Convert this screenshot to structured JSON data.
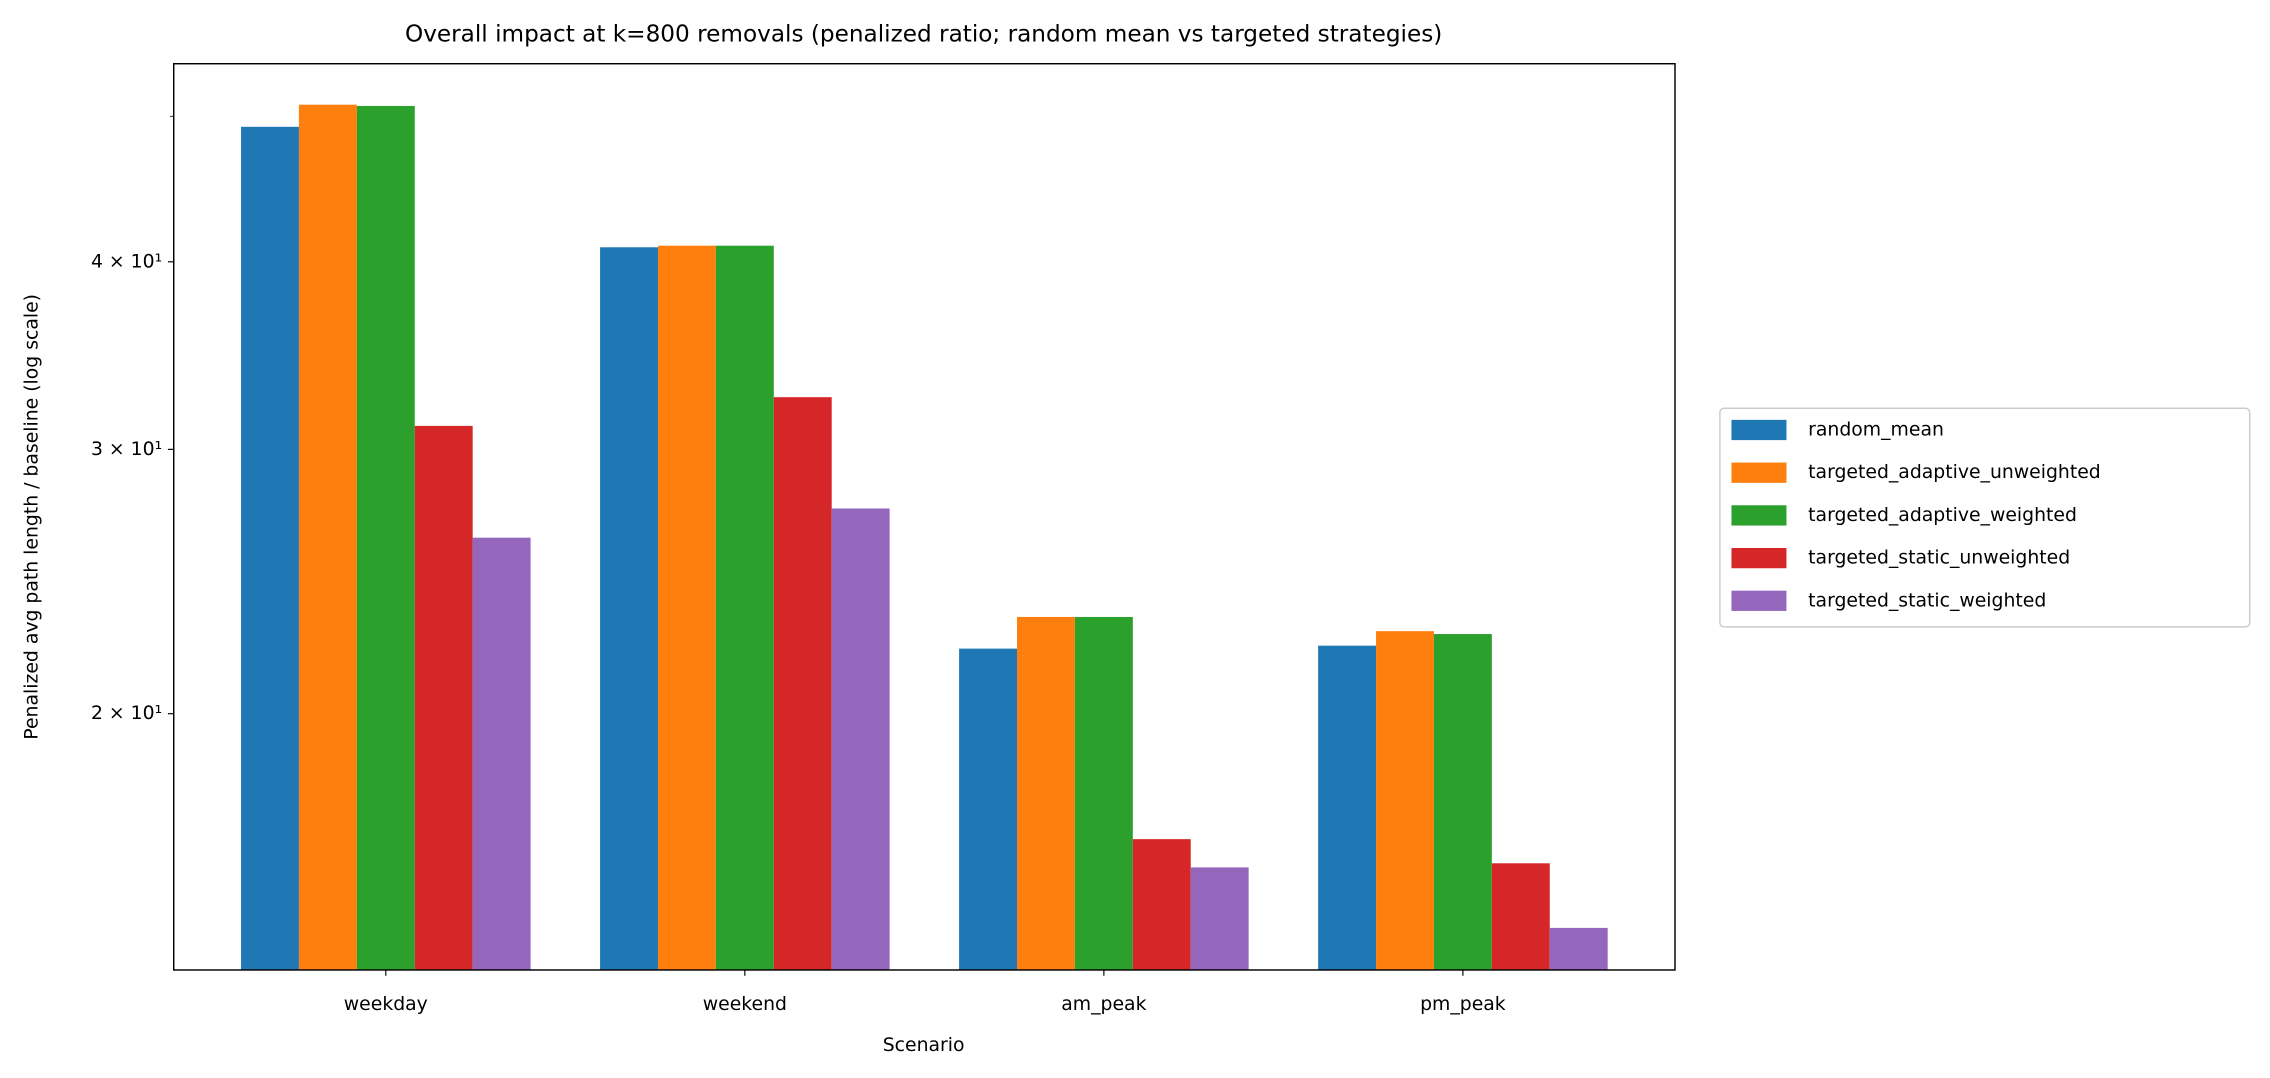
{
  "chart_data": {
    "type": "bar",
    "title": "Overall impact at k=800 removals (penalized ratio; random mean vs targeted strategies)",
    "x_label": "Scenario",
    "y_label": "Penalized avg path length / baseline (log scale)",
    "log_scale": true,
    "legend_position": "right",
    "categories": [
      "weekday",
      "weekend",
      "am_peak",
      "pm_peak"
    ],
    "series": [
      {
        "name": "random_mean",
        "color": "#1f77b4",
        "values": [
          49.2,
          40.9,
          22.1,
          22.2
        ]
      },
      {
        "name": "targeted_adaptive_unweighted",
        "color": "#ff7f0e",
        "values": [
          50.9,
          41.0,
          23.2,
          22.7
        ]
      },
      {
        "name": "targeted_adaptive_weighted",
        "color": "#2ca02c",
        "values": [
          50.8,
          41.0,
          23.2,
          22.6
        ]
      },
      {
        "name": "targeted_static_unweighted",
        "color": "#d62728",
        "values": [
          31.1,
          32.5,
          16.5,
          15.9
        ]
      },
      {
        "name": "targeted_static_weighted",
        "color": "#9467bd",
        "values": [
          26.2,
          27.4,
          15.8,
          14.4
        ]
      }
    ],
    "ylim": [
      13.5,
      54.2
    ],
    "yticks": [
      {
        "value": 20,
        "label": "2 × 10¹"
      },
      {
        "value": 30,
        "label": "3 × 10¹"
      },
      {
        "value": 40,
        "label": "4 × 10¹"
      }
    ],
    "yminorticks": [
      50
    ]
  }
}
